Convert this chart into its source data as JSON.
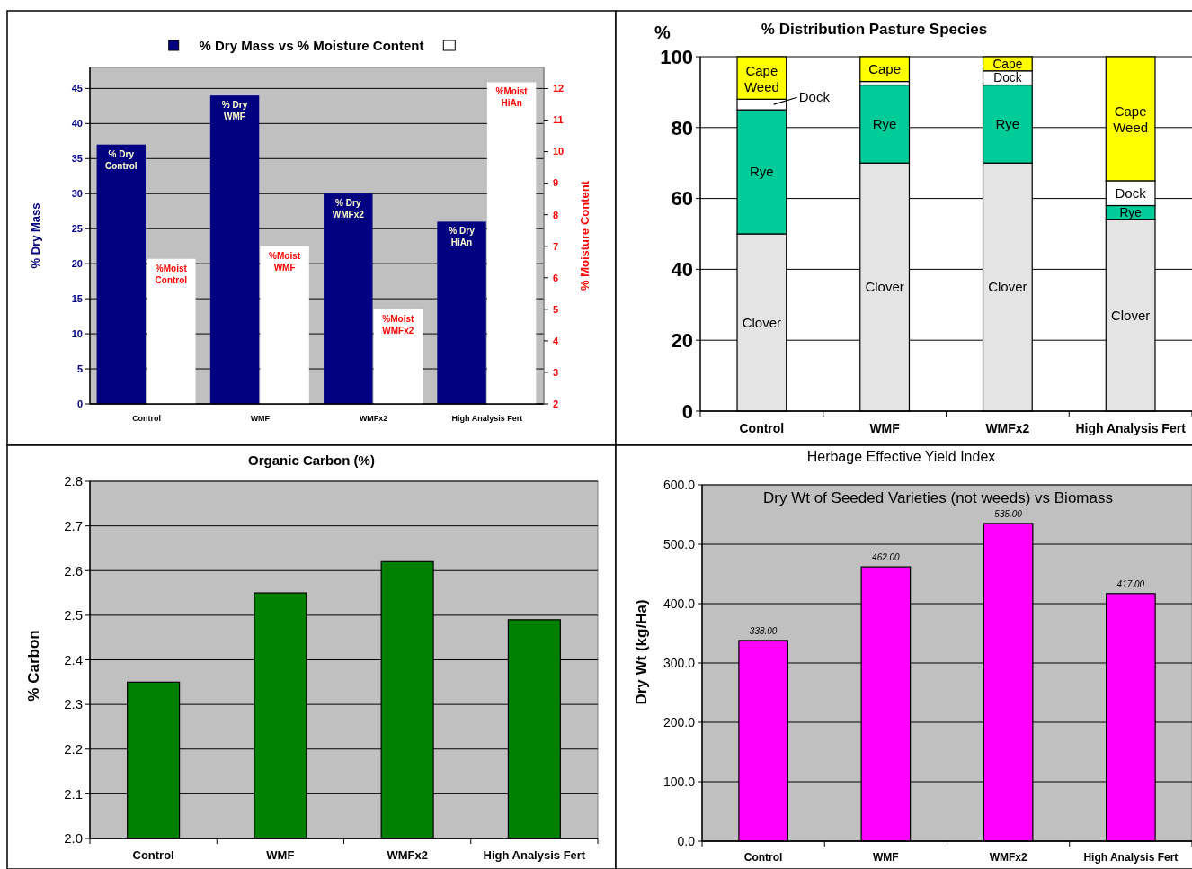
{
  "chart_data": [
    {
      "type": "bar",
      "title": "% Dry Mass  vs  % Moisture Content",
      "ylabel": "% Dry Mass",
      "y2label": "% Moisture Content",
      "categories": [
        "Control",
        "WMF",
        "WMFx2",
        "High Analysis Fert"
      ],
      "series": [
        {
          "color": "#000080",
          "values": [
            37,
            44,
            30,
            26
          ]
        },
        {
          "color": "#ffffff",
          "values": [
            6.6,
            7.0,
            5.0,
            12.2
          ],
          "axis": "y2"
        }
      ],
      "annotations": [
        "% Dry Control",
        "% Dry WMF",
        "% Dry WMFx2",
        "% Dry HiAn",
        "%Moist Control",
        "%Moist WMF",
        "%Moist WMFx2",
        "%Moist HiAn"
      ],
      "ylim": [
        0,
        48
      ],
      "yticks": [
        0,
        5,
        10,
        15,
        20,
        25,
        30,
        35,
        40,
        45
      ],
      "y2lim": [
        2,
        12.67
      ],
      "y2ticks": [
        2,
        3,
        4,
        5,
        6,
        7,
        8,
        9,
        10,
        11,
        12
      ],
      "grid": "y"
    },
    {
      "type": "bar",
      "stacked": true,
      "title": "% Distribution Pasture Species",
      "ylabel": "%",
      "categories": [
        "Control",
        "WMF",
        "WMFx2",
        "High Analysis Fert"
      ],
      "series": [
        {
          "color": "#e4e4e4",
          "values": [
            50,
            70,
            70,
            54
          ],
          "value_labels": [
            "Clover",
            "Clover",
            "Clover",
            "Clover"
          ]
        },
        {
          "color": "#00cc99",
          "values": [
            35,
            22,
            22,
            4
          ],
          "value_labels": [
            "Rye",
            "Rye",
            "Rye",
            "Rye"
          ]
        },
        {
          "color": "#ffffff",
          "values": [
            3,
            1,
            4,
            7
          ],
          "value_labels": [
            "Dock",
            null,
            "Dock",
            "Dock"
          ]
        },
        {
          "color": "#ffff00",
          "values": [
            12,
            7,
            4,
            35
          ],
          "value_labels": [
            "Cape Weed",
            "Cape",
            "Cape",
            "Cape Weed"
          ]
        }
      ],
      "ylim": [
        0,
        100
      ],
      "yticks": [
        0,
        20,
        40,
        60,
        80,
        100
      ],
      "grid": "y"
    },
    {
      "type": "bar",
      "title": "Organic Carbon (%)",
      "ylabel": "% Carbon",
      "categories": [
        "Control",
        "WMF",
        "WMFx2",
        "High Analysis Fert"
      ],
      "values": [
        2.35,
        2.55,
        2.62,
        2.49
      ],
      "color": "#008000",
      "ylim": [
        2,
        2.8
      ],
      "yticks": [
        {
          "value": 2,
          "label": "2.0"
        },
        2.1,
        2.2,
        2.3,
        2.4,
        2.5,
        2.6,
        2.7,
        2.8
      ],
      "grid": "y"
    },
    {
      "type": "bar",
      "title": "Herbage Effective Yield Index",
      "subtitle": "Dry Wt of Seeded Varieties (not weeds)  vs Biomass",
      "ylabel": "Dry Wt  (kg/Ha)",
      "categories": [
        "Control",
        "WMF",
        "WMFx2",
        "High Analysis Fert"
      ],
      "values": [
        338,
        462,
        535,
        417
      ],
      "value_labels": [
        "338.00",
        "462.00",
        "535.00",
        "417.00"
      ],
      "color": "#ff00ff",
      "ylim": [
        0,
        600
      ],
      "yticks": [
        {
          "value": 0,
          "label": "0.0"
        },
        {
          "value": 100,
          "label": "100.0"
        },
        {
          "value": 200,
          "label": "200.0"
        },
        {
          "value": 300,
          "label": "300.0"
        },
        {
          "value": 400,
          "label": "400.0"
        },
        {
          "value": 500,
          "label": "500.0"
        },
        {
          "value": 600,
          "label": "600.0"
        }
      ],
      "grid": "y"
    }
  ]
}
